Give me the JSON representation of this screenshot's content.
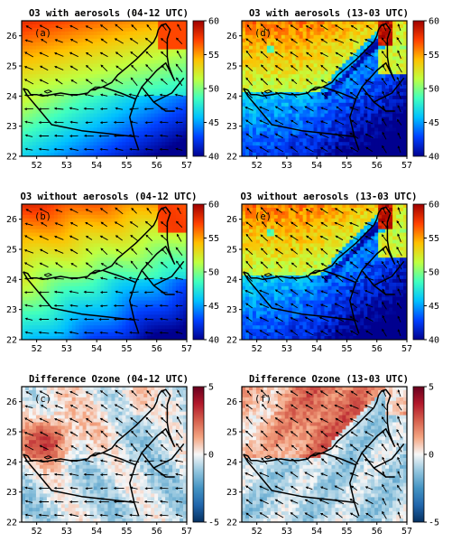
{
  "figure": {
    "x_ticks": [
      "52",
      "53",
      "54",
      "55",
      "56",
      "57"
    ],
    "y_ticks": [
      "22",
      "23",
      "24",
      "25",
      "26"
    ],
    "panels": [
      {
        "id": "a",
        "title": "O3 with aerosols (04-12 UTC)",
        "label": "(a)",
        "kind": "ozone",
        "period": "day",
        "colorbar": {
          "min": 40,
          "max": 60,
          "ticks": [
            "40",
            "45",
            "50",
            "55",
            "60"
          ],
          "colors": [
            "#00008f",
            "#0040ff",
            "#00c0ff",
            "#40ffbf",
            "#c0ff40",
            "#ffc000",
            "#ff4000",
            "#9f0000"
          ]
        }
      },
      {
        "id": "d",
        "title": "O3 with aerosols (13-03 UTC)",
        "label": "(d)",
        "kind": "ozone",
        "period": "night",
        "colorbar": {
          "min": 40,
          "max": 60,
          "ticks": [
            "40",
            "45",
            "50",
            "55",
            "60"
          ],
          "colors": [
            "#00008f",
            "#0040ff",
            "#00c0ff",
            "#40ffbf",
            "#c0ff40",
            "#ffc000",
            "#ff4000",
            "#9f0000"
          ]
        }
      },
      {
        "id": "b",
        "title": "O3 without aerosols (04-12 UTC)",
        "label": "(b)",
        "kind": "ozone",
        "period": "day",
        "colorbar": {
          "min": 40,
          "max": 60,
          "ticks": [
            "40",
            "45",
            "50",
            "55",
            "60"
          ],
          "colors": [
            "#00008f",
            "#0040ff",
            "#00c0ff",
            "#40ffbf",
            "#c0ff40",
            "#ffc000",
            "#ff4000",
            "#9f0000"
          ]
        }
      },
      {
        "id": "e",
        "title": "O3 without aerosols (13-03 UTC)",
        "label": "(e)",
        "kind": "ozone",
        "period": "night",
        "colorbar": {
          "min": 40,
          "max": 60,
          "ticks": [
            "40",
            "45",
            "50",
            "55",
            "60"
          ],
          "colors": [
            "#00008f",
            "#0040ff",
            "#00c0ff",
            "#40ffbf",
            "#c0ff40",
            "#ffc000",
            "#ff4000",
            "#9f0000"
          ]
        }
      },
      {
        "id": "c",
        "title": "Difference Ozone (04-12 UTC)",
        "label": "(c)",
        "kind": "diff",
        "period": "day",
        "colorbar": {
          "min": -5,
          "max": 5,
          "ticks": [
            "-5",
            "0",
            "5"
          ],
          "colors": [
            "#053061",
            "#2166ac",
            "#4393c3",
            "#92c5de",
            "#f7f7f7",
            "#f4a582",
            "#d6604d",
            "#b2182b",
            "#67001f"
          ]
        }
      },
      {
        "id": "f",
        "title": "Difference Ozone (13-03 UTC)",
        "label": "(f)",
        "kind": "diff",
        "period": "night",
        "colorbar": {
          "min": -5,
          "max": 5,
          "ticks": [
            "-5",
            "0",
            "5"
          ],
          "colors": [
            "#053061",
            "#2166ac",
            "#4393c3",
            "#92c5de",
            "#f7f7f7",
            "#f4a582",
            "#d6604d",
            "#b2182b",
            "#67001f"
          ]
        }
      }
    ]
  }
}
